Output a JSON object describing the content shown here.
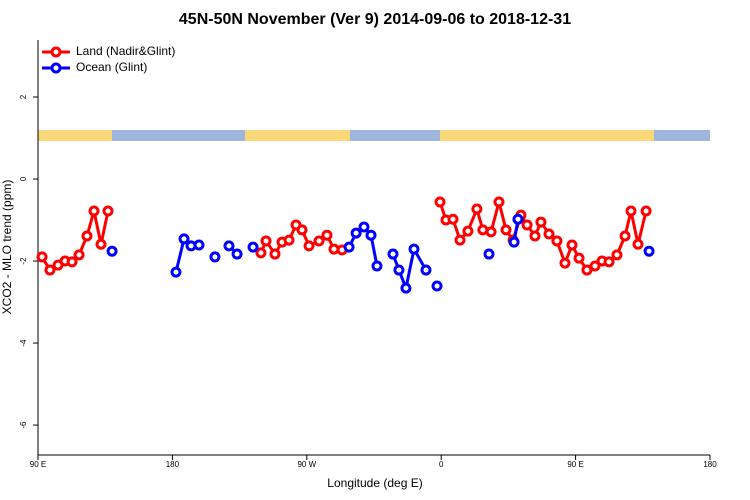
{
  "chart_data": {
    "type": "line",
    "title": "45N-50N November (Ver 9)   2014-09-06 to 2018-12-31",
    "x_label": "Longitude (deg E)",
    "y_label": "XCO2 - MLO trend (ppm)",
    "xlim": [
      90,
      540
    ],
    "ylim": [
      -6.73,
      3.39
    ],
    "xticks": [
      {
        "value": 90,
        "label": "90 E"
      },
      180,
      {
        "value": 270,
        "label": "90 W"
      },
      {
        "value": 360,
        "label": "0"
      },
      {
        "value": 450,
        "label": "90 E"
      },
      {
        "value": 540,
        "label": "180"
      }
    ],
    "yticks": [
      -6,
      -4,
      -2,
      0,
      2
    ],
    "legend": "top-left",
    "series": [
      {
        "name": "Land (Nadir&Glint)",
        "color": "#ff0000",
        "x": [
          92.7,
          98,
          103.4,
          108.1,
          112.8,
          117.5,
          122.8,
          127.5,
          132.2,
          136.9,
          null,
          239.3,
          242.7,
          248.7,
          253.4,
          258.1,
          262.8,
          266.8,
          271.5,
          278.2,
          283.5,
          288.2,
          293.6,
          null,
          359.2,
          363.2,
          367.9,
          372.6,
          377.9,
          383.9,
          387.9,
          393.4,
          398.7,
          403.4,
          408.1,
          413.4,
          417.5,
          422.8,
          426.8,
          432.2,
          437.5,
          442.9,
          447.6,
          452.3,
          457.6,
          463,
          467.7,
          472.4,
          477.7,
          483.1,
          487.1,
          491.8,
          497.2
        ],
        "values": [
          -1.9,
          -2.22,
          -2.1,
          -2.0,
          -2.02,
          -1.85,
          -1.39,
          -0.78,
          -1.59,
          -0.78,
          null,
          -1.8,
          -1.51,
          -1.83,
          -1.54,
          -1.49,
          -1.12,
          -1.24,
          -1.63,
          -1.51,
          -1.37,
          -1.71,
          -1.73,
          null,
          -0.56,
          -1.0,
          -0.98,
          -1.49,
          -1.27,
          -0.73,
          -1.24,
          -1.29,
          -0.56,
          -1.24,
          -1.49,
          -0.88,
          -1.12,
          -1.39,
          -1.05,
          -1.34,
          -1.51,
          -2.05,
          -1.61,
          -1.93,
          -2.22,
          -2.12,
          -2.0,
          -2.02,
          -1.85,
          -1.39,
          -0.78,
          -1.59,
          -0.78
        ]
      },
      {
        "name": "Ocean (Glint)",
        "color": "#0000ff",
        "x": [
          139.6,
          null,
          182.4,
          187.8,
          192.5,
          197.8,
          null,
          208.5,
          null,
          217.9,
          223.3,
          null,
          234,
          null,
          298.3,
          303,
          308.3,
          313,
          317,
          null,
          327.7,
          331.7,
          336.4,
          341.8,
          349.8,
          null,
          357.2,
          null,
          392,
          null,
          408.8,
          411.4,
          null,
          499.2
        ],
        "values": [
          -1.76,
          null,
          -2.27,
          -1.46,
          -1.63,
          -1.61,
          null,
          -1.9,
          null,
          -1.63,
          -1.83,
          null,
          -1.66,
          null,
          -1.66,
          -1.32,
          -1.17,
          -1.37,
          -2.12,
          null,
          -1.83,
          -2.22,
          -2.66,
          -1.71,
          -2.22,
          null,
          -2.61,
          null,
          -1.83,
          null,
          -1.54,
          -0.98,
          null,
          -1.76
        ]
      }
    ]
  }
}
